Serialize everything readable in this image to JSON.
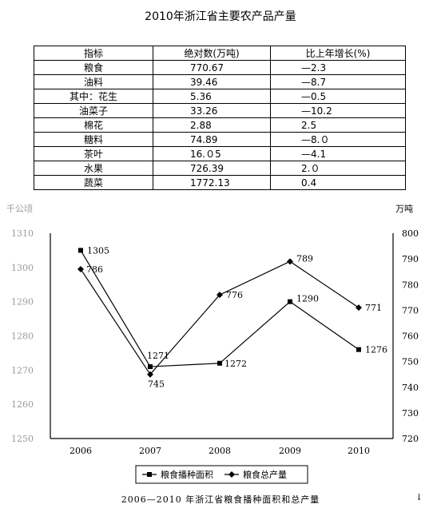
{
  "title": "2010年浙江省主要农产品产量",
  "table": {
    "headers": [
      "指标",
      "绝对数(万吨)",
      "比上年增长(%)"
    ],
    "rows": [
      [
        "粮食",
        "770.67",
        "—2.3"
      ],
      [
        "油料",
        "39.46",
        "—8.7"
      ],
      [
        "其中：花生",
        "5.36",
        "—0.5"
      ],
      [
        "油菜子",
        "33.26",
        "—10.2"
      ],
      [
        "棉花",
        "2.88",
        "2.5"
      ],
      [
        "糖料",
        "74.89",
        "—8.０"
      ],
      [
        "茶叶",
        "16.０5",
        "—4.1"
      ],
      [
        "水果",
        "726.39",
        "2.０"
      ],
      [
        "蔬菜",
        "1772.13",
        "0.4"
      ]
    ]
  },
  "chart_data": {
    "type": "line",
    "title": "2006—2010 年浙江省粮食播种面积和总产量",
    "x": [
      "2006",
      "2007",
      "2008",
      "2009",
      "2010"
    ],
    "y_left": {
      "unit": "千公顷",
      "ticks": [
        "1250",
        "1260",
        "1270",
        "1280",
        "1290",
        "1300",
        "1310"
      ],
      "range": [
        1250,
        1310
      ]
    },
    "y_right": {
      "unit": "万吨",
      "ticks": [
        "720",
        "730",
        "740",
        "750",
        "760",
        "770",
        "780",
        "790",
        "800"
      ],
      "range": [
        720,
        800
      ]
    },
    "series": [
      {
        "name": "粮食播种面积",
        "axis": "left",
        "marker": "square",
        "values": [
          1305,
          1271,
          1272,
          1290,
          1276
        ],
        "labels": [
          "1305",
          "1271",
          "1272",
          "1290",
          "1276"
        ]
      },
      {
        "name": "粮食总产量",
        "axis": "right",
        "marker": "diamond",
        "values": [
          786,
          745,
          776,
          789,
          771
        ],
        "labels": [
          "786",
          "745",
          "776",
          "789",
          "771"
        ]
      }
    ],
    "legend_position": "bottom",
    "grid": false
  },
  "footer_mark": "↓"
}
